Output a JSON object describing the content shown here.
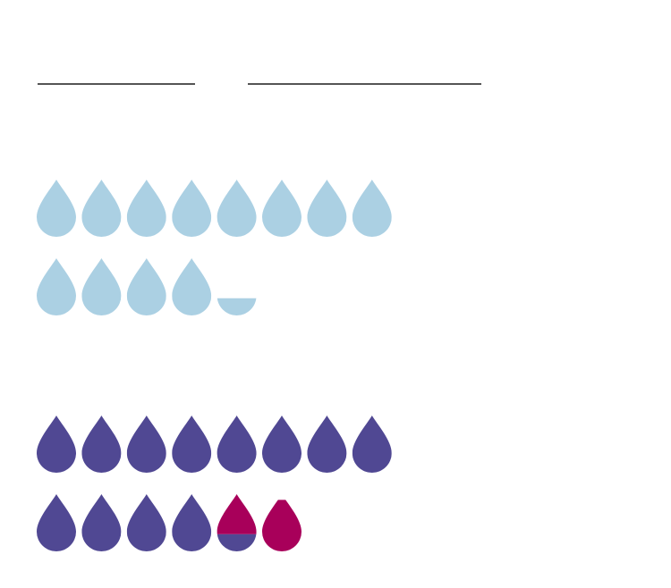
{
  "chart_data": {
    "type": "pictograph",
    "groups": [
      {
        "series": [
          {
            "color": "#abd0e3",
            "values": [
              12.3
            ]
          }
        ]
      },
      {
        "series": [
          {
            "color": "#504893",
            "values": [
              12.3
            ]
          },
          {
            "color": "#a8005a",
            "values": [
              1.6
            ]
          }
        ]
      }
    ]
  }
}
